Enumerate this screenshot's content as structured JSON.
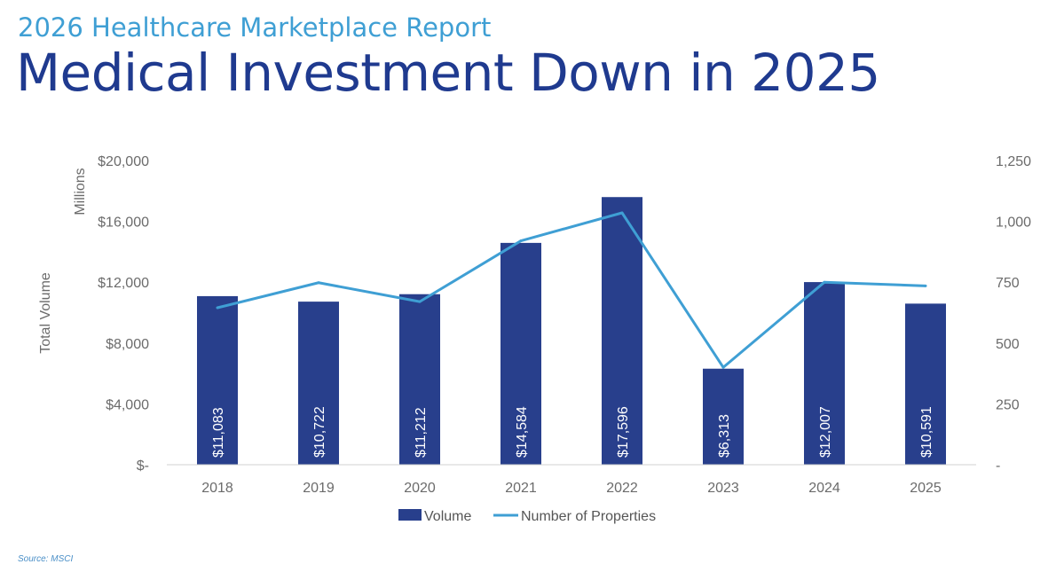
{
  "header": {
    "kicker": "2026 Healthcare Marketplace Report",
    "title": "Medical Investment Down in 2025"
  },
  "footer": {
    "source": "Source: MSCI"
  },
  "chart_data": {
    "type": "bar",
    "categories": [
      "2018",
      "2019",
      "2020",
      "2021",
      "2022",
      "2023",
      "2024",
      "2025"
    ],
    "series": [
      {
        "name": "Volume",
        "type": "bar",
        "axis": "left",
        "color": "#283f8c",
        "values": [
          11083,
          10722,
          11212,
          14584,
          17596,
          6313,
          12007,
          10591
        ],
        "labels": [
          "$11,083",
          "$10,722",
          "$11,212",
          "$14,584",
          "$17,596",
          "$6,313",
          "$12,007",
          "$10,591"
        ]
      },
      {
        "name": "Number of Properties",
        "type": "line",
        "axis": "right",
        "color": "#3f9fd4",
        "values": [
          645,
          748,
          670,
          920,
          1035,
          400,
          750,
          735
        ]
      }
    ],
    "y_left": {
      "label": "Total Volume",
      "units_label": "Millions",
      "ylim": [
        0,
        20000
      ],
      "ticks": [
        0,
        4000,
        8000,
        12000,
        16000,
        20000
      ],
      "tick_labels": [
        "$-",
        "$4,000",
        "$8,000",
        "$12,000",
        "$16,000",
        "$20,000"
      ]
    },
    "y_right": {
      "ylim": [
        0,
        1250
      ],
      "ticks": [
        0,
        250,
        500,
        750,
        1000,
        1250
      ],
      "tick_labels": [
        "-",
        "250",
        "500",
        "750",
        "1,000",
        "1,250"
      ]
    },
    "legend": {
      "position": "bottom-center",
      "entries": [
        "Volume",
        "Number of Properties"
      ]
    },
    "grid": false
  }
}
